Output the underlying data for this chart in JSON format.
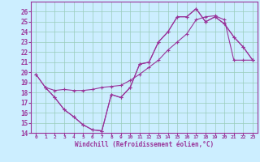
{
  "bg_color": "#cceeff",
  "line_color": "#993399",
  "grid_color": "#99ccbb",
  "xlabel": "Windchill (Refroidissement éolien,°C)",
  "xlim": [
    -0.5,
    23.5
  ],
  "ylim": [
    14,
    27
  ],
  "xticks": [
    0,
    1,
    2,
    3,
    4,
    5,
    6,
    7,
    8,
    9,
    10,
    11,
    12,
    13,
    14,
    15,
    16,
    17,
    18,
    19,
    20,
    21,
    22,
    23
  ],
  "yticks": [
    14,
    15,
    16,
    17,
    18,
    19,
    20,
    21,
    22,
    23,
    24,
    25,
    26
  ],
  "series": [
    {
      "x": [
        0,
        1,
        2,
        3,
        4,
        5,
        6,
        7,
        8,
        9,
        10,
        11,
        12,
        13,
        14,
        15,
        16,
        17,
        18,
        19,
        20,
        21,
        22,
        23
      ],
      "y": [
        19.8,
        18.5,
        17.5,
        16.3,
        15.6,
        14.8,
        14.3,
        14.2,
        17.8,
        17.5,
        18.5,
        20.8,
        21.0,
        23.0,
        24.0,
        25.5,
        25.5,
        26.3,
        25.0,
        25.5,
        24.8,
        23.5,
        22.5,
        21.2
      ]
    },
    {
      "x": [
        0,
        1,
        2,
        3,
        4,
        5,
        6,
        7,
        8,
        9,
        10,
        11,
        12,
        13,
        14,
        15,
        16,
        17,
        18,
        19,
        20,
        21,
        22,
        23
      ],
      "y": [
        19.8,
        18.5,
        18.2,
        18.3,
        18.2,
        18.2,
        18.3,
        18.5,
        18.6,
        18.7,
        19.2,
        19.8,
        20.5,
        21.2,
        22.2,
        23.0,
        23.8,
        25.2,
        25.5,
        25.6,
        25.2,
        21.2,
        21.2,
        21.2
      ]
    },
    {
      "x": [
        1,
        2,
        3,
        4,
        5,
        6,
        7,
        8,
        9,
        10,
        11,
        12,
        13,
        14,
        15,
        16,
        17,
        18,
        19,
        20,
        21,
        22,
        23
      ],
      "y": [
        18.5,
        17.5,
        16.3,
        15.6,
        14.8,
        14.3,
        14.2,
        17.8,
        17.5,
        18.5,
        20.8,
        21.0,
        23.0,
        24.0,
        25.5,
        25.5,
        26.3,
        25.0,
        25.5,
        24.8,
        23.5,
        22.5,
        21.2
      ]
    }
  ]
}
